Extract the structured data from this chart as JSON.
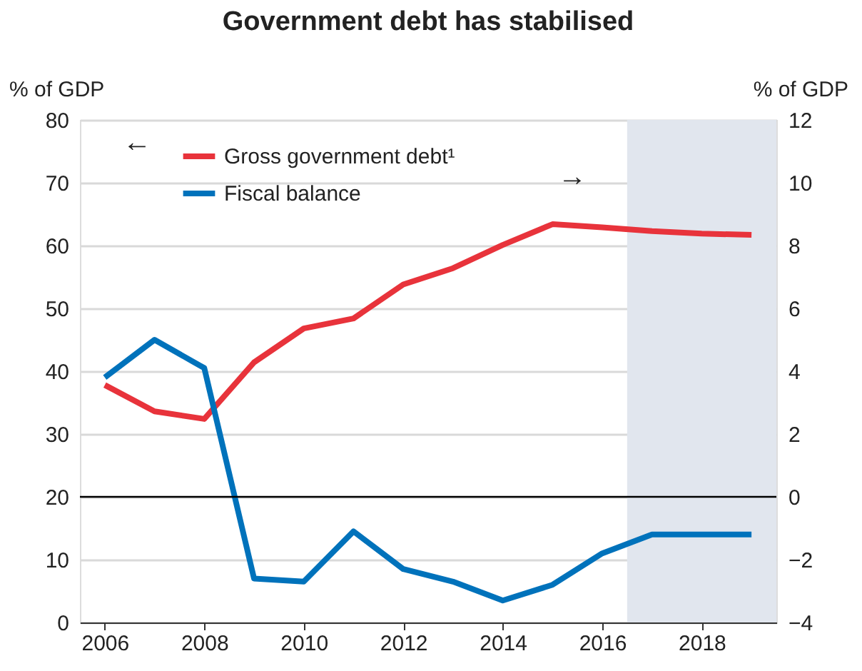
{
  "chart_data": {
    "type": "line",
    "title": "Government debt has stabilised",
    "ylabel": "% of GDP",
    "y2label": "% of GDP",
    "x": [
      2006,
      2007,
      2008,
      2009,
      2010,
      2011,
      2012,
      2013,
      2014,
      2015,
      2016,
      2017,
      2018,
      2019
    ],
    "series": [
      {
        "name": "Gross government debt¹",
        "color": "#e8333b",
        "values": [
          37.8,
          33.6,
          32.4,
          41.4,
          46.8,
          48.4,
          53.8,
          56.4,
          60.1,
          63.4,
          62.9,
          62.3,
          61.9,
          61.7
        ]
      },
      {
        "name": "Fiscal balance",
        "color": "#0072bb",
        "axis": "y2",
        "values": [
          3.8,
          5.0,
          4.1,
          -2.6,
          -2.7,
          -1.1,
          -2.3,
          -2.7,
          -3.3,
          -2.8,
          -1.8,
          -1.2,
          -1.2,
          -1.2
        ]
      }
    ],
    "xlim": [
      2005.5,
      2019.5
    ],
    "xticks": [
      2006,
      2008,
      2010,
      2012,
      2014,
      2016,
      2018
    ],
    "ylim": [
      0,
      80
    ],
    "yticks": [
      0,
      10,
      20,
      30,
      40,
      50,
      60,
      70,
      80
    ],
    "y2lim": [
      -4,
      12
    ],
    "y2ticks": [
      -4,
      -2,
      0,
      2,
      4,
      6,
      8,
      10,
      12
    ],
    "ref_lines": [
      {
        "axis": "y2",
        "value": 0,
        "color": "#000000"
      }
    ],
    "bands": [
      {
        "axis": "x",
        "from": 2016.5,
        "to": 2019.5,
        "color": "#e1e6ee"
      }
    ],
    "annotations": [
      "←",
      "→"
    ],
    "grid": "y",
    "legend": "top left",
    "marker": "none",
    "line_style": "solid"
  }
}
